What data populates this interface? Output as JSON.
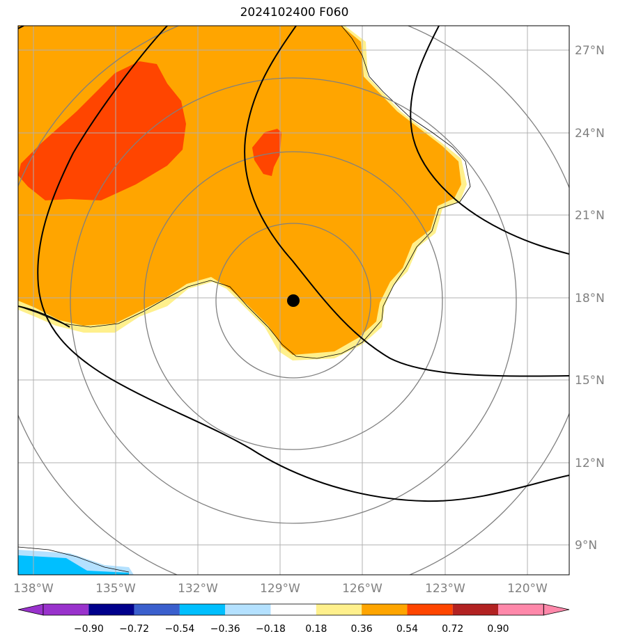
{
  "title": "2024102400 F060",
  "colors": {
    "shade_018_036": "#FFF08C",
    "shade_036_054": "#FFA500",
    "shade_054_072": "#FF4500",
    "shade_neg_036_018": "#B4E1FF",
    "shade_neg_054_036": "#00BFFF",
    "contour_black": "#000000",
    "range_ring": "#808080",
    "gridline": "#b0b0b0",
    "center_marker": "#000000"
  },
  "map": {
    "lon_ticks": [
      "138°W",
      "135°W",
      "132°W",
      "129°W",
      "126°W",
      "123°W",
      "120°W"
    ],
    "lat_ticks": [
      "27°N",
      "24°N",
      "21°N",
      "18°N",
      "15°N",
      "12°N",
      "9°N"
    ],
    "center_marker": "storm-center-dot"
  },
  "colorbar": {
    "levels": [
      "−0.90",
      "−0.72",
      "−0.54",
      "−0.36",
      "−0.18",
      "0.18",
      "0.36",
      "0.54",
      "0.72",
      "0.90"
    ],
    "colors": [
      "#9932CC",
      "#00008B",
      "#3A5FCD",
      "#00BFFF",
      "#B4E1FF",
      "#FFFFFF",
      "#FFF08C",
      "#FFA500",
      "#FF4500",
      "#B22222",
      "#FF88AA"
    ]
  }
}
